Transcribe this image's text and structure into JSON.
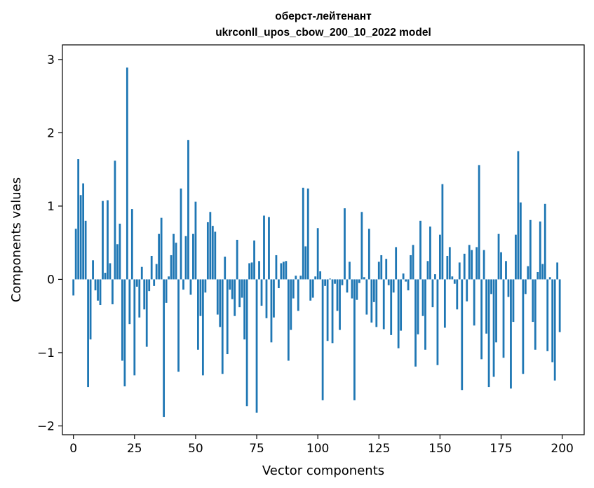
{
  "chart_data": {
    "type": "bar",
    "title_line1": "оберст-лейтенант",
    "title_line2": "ukrconll_upos_cbow_200_10_2022 model",
    "xlabel": "Vector components",
    "ylabel": "Components values",
    "xlim": [
      -4.5,
      209
    ],
    "ylim": [
      -2.12,
      3.2
    ],
    "xticks": [
      0,
      25,
      50,
      75,
      100,
      125,
      150,
      175,
      200
    ],
    "xtick_labels": [
      "0",
      "25",
      "50",
      "75",
      "100",
      "125",
      "150",
      "175",
      "200"
    ],
    "yticks": [
      -2,
      -1,
      0,
      1,
      2,
      3
    ],
    "ytick_labels": [
      "−2",
      "−1",
      "0",
      "1",
      "2",
      "3"
    ],
    "grid": false,
    "color": "#1f77b4",
    "values": [
      -0.22,
      0.69,
      1.64,
      1.15,
      1.31,
      0.8,
      -1.47,
      -0.82,
      0.26,
      -0.15,
      -0.29,
      -0.35,
      1.07,
      0.09,
      1.08,
      0.22,
      -0.34,
      1.62,
      0.48,
      0.76,
      -1.11,
      -1.46,
      2.89,
      -0.61,
      0.96,
      -1.31,
      -0.1,
      -0.52,
      0.17,
      -0.41,
      -0.92,
      -0.16,
      0.32,
      -0.09,
      0.21,
      0.62,
      0.84,
      -1.88,
      -0.32,
      0.04,
      0.33,
      0.62,
      0.5,
      -1.26,
      1.24,
      -0.14,
      0.59,
      1.9,
      -0.21,
      0.62,
      1.06,
      -0.96,
      -0.5,
      -1.31,
      -0.18,
      0.78,
      0.92,
      0.73,
      0.65,
      -0.48,
      -0.65,
      -1.29,
      0.31,
      -1.02,
      -0.14,
      -0.27,
      -0.5,
      0.54,
      -0.38,
      -0.25,
      -0.82,
      -1.73,
      0.22,
      0.23,
      0.53,
      -1.82,
      0.25,
      -0.36,
      0.87,
      -0.53,
      0.85,
      -0.86,
      -0.52,
      0.33,
      -0.12,
      0.22,
      0.24,
      0.25,
      -1.11,
      -0.69,
      -0.26,
      0.05,
      -0.43,
      0.05,
      1.25,
      0.45,
      1.24,
      -0.29,
      -0.25,
      0.04,
      0.7,
      0.11,
      -1.65,
      -0.09,
      -0.84,
      0.01,
      -0.87,
      -0.06,
      -0.43,
      -0.69,
      -0.08,
      0.97,
      -0.18,
      0.24,
      -0.26,
      -1.65,
      -0.28,
      -0.05,
      0.92,
      0.03,
      -0.48,
      0.69,
      -0.59,
      -0.31,
      -0.65,
      0.24,
      0.33,
      -0.68,
      0.28,
      -0.08,
      -0.76,
      -0.18,
      0.44,
      -0.94,
      -0.7,
      0.08,
      -0.03,
      -0.15,
      0.33,
      0.47,
      -1.19,
      -0.75,
      0.8,
      -0.5,
      -0.96,
      0.25,
      0.72,
      -0.38,
      0.07,
      -1.17,
      0.61,
      1.3,
      -0.66,
      0.32,
      0.44,
      0.04,
      -0.06,
      -0.41,
      0.23,
      -1.51,
      0.35,
      -0.3,
      0.47,
      0.4,
      -0.63,
      0.44,
      1.56,
      -1.09,
      0.4,
      -0.74,
      -1.47,
      -0.2,
      -1.33,
      -0.86,
      0.62,
      0.37,
      -1.07,
      0.25,
      -0.24,
      -1.49,
      -0.58,
      0.61,
      1.75,
      1.05,
      -1.29,
      -0.2,
      0.18,
      0.81,
      -0.58,
      -0.96,
      0.1,
      0.79,
      0.21,
      1.03,
      -0.98,
      0.03,
      -1.13,
      -1.38,
      0.23,
      -0.72
    ]
  }
}
